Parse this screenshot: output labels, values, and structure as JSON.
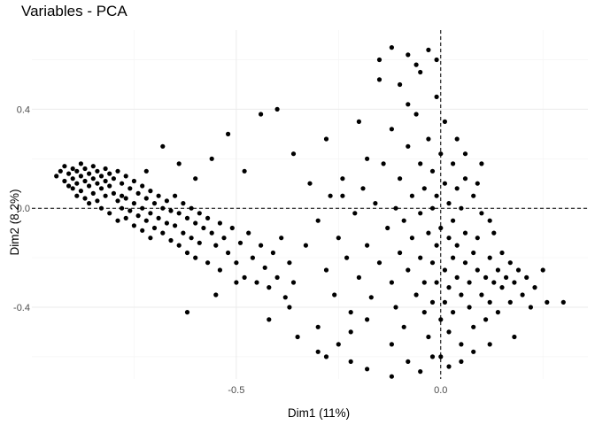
{
  "chart_data": {
    "type": "scatter",
    "title": "Variables - PCA",
    "xlabel": "Dim1 (11%)",
    "ylabel": "Dim2 (8.2%)",
    "xlim": [
      -1.0,
      0.36
    ],
    "ylim": [
      -0.69,
      0.72
    ],
    "x_ticks": [
      -0.5,
      0.0
    ],
    "x_tick_labels": [
      "-0.5",
      "0.0"
    ],
    "y_ticks": [
      -0.4,
      0.0,
      0.4
    ],
    "y_tick_labels": [
      "-0.4",
      "0.0",
      "0.4"
    ],
    "grid": true,
    "reference_lines": {
      "x": 0.0,
      "y": 0.0,
      "style": "dashed"
    },
    "point_color": "#000000",
    "legend": "none",
    "points": [
      [
        -0.94,
        0.13
      ],
      [
        -0.93,
        0.15
      ],
      [
        -0.92,
        0.17
      ],
      [
        -0.92,
        0.11
      ],
      [
        -0.91,
        0.14
      ],
      [
        -0.91,
        0.09
      ],
      [
        -0.9,
        0.16
      ],
      [
        -0.9,
        0.12
      ],
      [
        -0.9,
        0.08
      ],
      [
        -0.89,
        0.15
      ],
      [
        -0.89,
        0.1
      ],
      [
        -0.89,
        0.05
      ],
      [
        -0.88,
        0.18
      ],
      [
        -0.88,
        0.13
      ],
      [
        -0.88,
        0.07
      ],
      [
        -0.87,
        0.16
      ],
      [
        -0.87,
        0.11
      ],
      [
        -0.87,
        0.04
      ],
      [
        -0.86,
        0.14
      ],
      [
        -0.86,
        0.09
      ],
      [
        -0.86,
        0.02
      ],
      [
        -0.85,
        0.17
      ],
      [
        -0.85,
        0.12
      ],
      [
        -0.85,
        0.06
      ],
      [
        -0.84,
        0.15
      ],
      [
        -0.84,
        0.1
      ],
      [
        -0.84,
        0.03
      ],
      [
        -0.83,
        0.13
      ],
      [
        -0.83,
        0.08
      ],
      [
        -0.83,
        0.0
      ],
      [
        -0.82,
        0.16
      ],
      [
        -0.82,
        0.11
      ],
      [
        -0.82,
        0.05
      ],
      [
        -0.81,
        0.14
      ],
      [
        -0.81,
        0.09
      ],
      [
        -0.81,
        -0.02
      ],
      [
        -0.8,
        0.12
      ],
      [
        -0.8,
        0.06
      ],
      [
        -0.79,
        0.15
      ],
      [
        -0.79,
        0.03
      ],
      [
        -0.79,
        -0.05
      ],
      [
        -0.78,
        0.1
      ],
      [
        -0.78,
        0.0
      ],
      [
        -0.77,
        0.13
      ],
      [
        -0.77,
        0.04
      ],
      [
        -0.77,
        -0.04
      ],
      [
        -0.76,
        0.08
      ],
      [
        -0.76,
        -0.01
      ],
      [
        -0.75,
        0.11
      ],
      [
        -0.75,
        0.02
      ],
      [
        -0.75,
        -0.07
      ],
      [
        -0.74,
        0.06
      ],
      [
        -0.74,
        -0.03
      ],
      [
        -0.73,
        0.09
      ],
      [
        -0.73,
        0.0
      ],
      [
        -0.73,
        -0.09
      ],
      [
        -0.72,
        0.04
      ],
      [
        -0.72,
        -0.05
      ],
      [
        -0.71,
        0.07
      ],
      [
        -0.71,
        -0.02
      ],
      [
        -0.71,
        -0.12
      ],
      [
        -0.7,
        0.02
      ],
      [
        -0.7,
        -0.08
      ],
      [
        -0.69,
        0.05
      ],
      [
        -0.69,
        -0.04
      ],
      [
        -0.68,
        0.0
      ],
      [
        -0.68,
        -0.1
      ],
      [
        -0.67,
        0.03
      ],
      [
        -0.67,
        -0.06
      ],
      [
        -0.66,
        -0.01
      ],
      [
        -0.66,
        -0.13
      ],
      [
        -0.65,
        0.05
      ],
      [
        -0.65,
        -0.07
      ],
      [
        -0.64,
        -0.02
      ],
      [
        -0.64,
        -0.15
      ],
      [
        -0.63,
        0.02
      ],
      [
        -0.63,
        -0.1
      ],
      [
        -0.62,
        -0.04
      ],
      [
        -0.62,
        -0.18
      ],
      [
        -0.61,
        0.0
      ],
      [
        -0.61,
        -0.12
      ],
      [
        -0.6,
        -0.06
      ],
      [
        -0.6,
        -0.2
      ],
      [
        -0.59,
        -0.02
      ],
      [
        -0.59,
        -0.14
      ],
      [
        -0.58,
        -0.08
      ],
      [
        -0.57,
        -0.04
      ],
      [
        -0.57,
        -0.22
      ],
      [
        -0.56,
        -0.1
      ],
      [
        -0.55,
        -0.15
      ],
      [
        -0.54,
        -0.06
      ],
      [
        -0.54,
        -0.25
      ],
      [
        -0.53,
        -0.12
      ],
      [
        -0.52,
        -0.18
      ],
      [
        -0.51,
        -0.08
      ],
      [
        -0.5,
        -0.22
      ],
      [
        -0.49,
        -0.14
      ],
      [
        -0.48,
        -0.28
      ],
      [
        -0.47,
        -0.1
      ],
      [
        -0.46,
        -0.2
      ],
      [
        -0.45,
        -0.3
      ],
      [
        -0.44,
        -0.15
      ],
      [
        -0.43,
        -0.24
      ],
      [
        -0.42,
        -0.32
      ],
      [
        -0.41,
        -0.18
      ],
      [
        -0.4,
        -0.28
      ],
      [
        -0.39,
        -0.12
      ],
      [
        -0.38,
        -0.36
      ],
      [
        -0.37,
        -0.22
      ],
      [
        -0.36,
        -0.3
      ],
      [
        -0.78,
        0.05
      ],
      [
        -0.72,
        0.15
      ],
      [
        -0.68,
        0.25
      ],
      [
        -0.64,
        0.18
      ],
      [
        -0.6,
        0.12
      ],
      [
        -0.56,
        0.2
      ],
      [
        -0.52,
        0.3
      ],
      [
        -0.48,
        0.15
      ],
      [
        -0.44,
        0.38
      ],
      [
        -0.4,
        0.4
      ],
      [
        -0.36,
        0.22
      ],
      [
        -0.32,
        0.1
      ],
      [
        -0.28,
        0.28
      ],
      [
        -0.24,
        0.05
      ],
      [
        -0.2,
        0.35
      ],
      [
        -0.18,
        0.2
      ],
      [
        -0.15,
        0.52
      ],
      [
        -0.1,
        0.5
      ],
      [
        -0.08,
        0.42
      ],
      [
        -0.05,
        0.55
      ],
      [
        -0.62,
        -0.42
      ],
      [
        -0.55,
        -0.35
      ],
      [
        -0.5,
        -0.3
      ],
      [
        -0.42,
        -0.45
      ],
      [
        -0.37,
        -0.4
      ],
      [
        -0.3,
        -0.58
      ],
      [
        -0.25,
        -0.55
      ],
      [
        -0.22,
        -0.5
      ],
      [
        -0.18,
        -0.45
      ],
      [
        -0.12,
        -0.55
      ],
      [
        -0.33,
        -0.15
      ],
      [
        -0.3,
        -0.05
      ],
      [
        -0.28,
        -0.25
      ],
      [
        -0.27,
        0.05
      ],
      [
        -0.26,
        -0.35
      ],
      [
        -0.25,
        -0.12
      ],
      [
        -0.24,
        0.12
      ],
      [
        -0.23,
        -0.2
      ],
      [
        -0.22,
        -0.42
      ],
      [
        -0.21,
        -0.02
      ],
      [
        -0.2,
        -0.28
      ],
      [
        -0.19,
        0.08
      ],
      [
        -0.18,
        -0.15
      ],
      [
        -0.17,
        -0.36
      ],
      [
        -0.16,
        0.02
      ],
      [
        -0.15,
        -0.22
      ],
      [
        -0.14,
        0.18
      ],
      [
        -0.13,
        -0.08
      ],
      [
        -0.12,
        -0.3
      ],
      [
        -0.12,
        0.32
      ],
      [
        -0.11,
        0.0
      ],
      [
        -0.11,
        -0.4
      ],
      [
        -0.1,
        -0.18
      ],
      [
        -0.1,
        0.12
      ],
      [
        -0.09,
        -0.05
      ],
      [
        -0.09,
        -0.48
      ],
      [
        -0.08,
        0.25
      ],
      [
        -0.08,
        -0.25
      ],
      [
        -0.07,
        0.05
      ],
      [
        -0.07,
        -0.12
      ],
      [
        -0.06,
        -0.35
      ],
      [
        -0.06,
        0.38
      ],
      [
        -0.05,
        -0.02
      ],
      [
        -0.05,
        -0.2
      ],
      [
        -0.05,
        0.18
      ],
      [
        -0.04,
        -0.42
      ],
      [
        -0.04,
        0.08
      ],
      [
        -0.04,
        -0.3
      ],
      [
        -0.03,
        -0.1
      ],
      [
        -0.03,
        0.28
      ],
      [
        -0.03,
        -0.52
      ],
      [
        -0.02,
        0.0
      ],
      [
        -0.02,
        -0.22
      ],
      [
        -0.02,
        0.15
      ],
      [
        -0.02,
        -0.38
      ],
      [
        -0.01,
        0.45
      ],
      [
        -0.01,
        -0.15
      ],
      [
        -0.01,
        0.05
      ],
      [
        -0.01,
        -0.3
      ],
      [
        0.0,
        -0.45
      ],
      [
        0.0,
        0.22
      ],
      [
        0.0,
        -0.08
      ],
      [
        0.0,
        -0.6
      ],
      [
        0.01,
        0.1
      ],
      [
        0.01,
        -0.25
      ],
      [
        0.01,
        -0.38
      ],
      [
        0.01,
        0.35
      ],
      [
        0.02,
        -0.12
      ],
      [
        0.02,
        0.02
      ],
      [
        0.02,
        -0.5
      ],
      [
        0.02,
        -0.32
      ],
      [
        0.03,
        0.18
      ],
      [
        0.03,
        -0.2
      ],
      [
        0.03,
        -0.05
      ],
      [
        0.03,
        -0.42
      ],
      [
        0.04,
        0.08
      ],
      [
        0.04,
        -0.28
      ],
      [
        0.04,
        -0.15
      ],
      [
        0.05,
        -0.35
      ],
      [
        0.05,
        0.0
      ],
      [
        0.05,
        -0.55
      ],
      [
        0.06,
        -0.22
      ],
      [
        0.06,
        0.12
      ],
      [
        0.06,
        -0.1
      ],
      [
        0.07,
        -0.4
      ],
      [
        0.07,
        -0.3
      ],
      [
        0.08,
        -0.18
      ],
      [
        0.08,
        0.05
      ],
      [
        0.08,
        -0.48
      ],
      [
        0.09,
        -0.25
      ],
      [
        0.09,
        -0.12
      ],
      [
        0.1,
        -0.35
      ],
      [
        0.1,
        -0.02
      ],
      [
        0.11,
        -0.28
      ],
      [
        0.11,
        -0.45
      ],
      [
        0.12,
        -0.2
      ],
      [
        0.12,
        -0.38
      ],
      [
        0.13,
        -0.1
      ],
      [
        0.13,
        -0.3
      ],
      [
        0.14,
        -0.25
      ],
      [
        0.14,
        -0.42
      ],
      [
        0.15,
        -0.18
      ],
      [
        0.15,
        -0.32
      ],
      [
        0.16,
        -0.28
      ],
      [
        0.17,
        -0.22
      ],
      [
        0.17,
        -0.38
      ],
      [
        0.18,
        -0.3
      ],
      [
        0.19,
        -0.25
      ],
      [
        0.2,
        -0.35
      ],
      [
        0.21,
        -0.28
      ],
      [
        0.22,
        -0.4
      ],
      [
        0.23,
        -0.32
      ],
      [
        0.25,
        -0.25
      ],
      [
        0.26,
        -0.38
      ],
      [
        0.3,
        -0.38
      ],
      [
        -0.22,
        -0.62
      ],
      [
        -0.18,
        -0.65
      ],
      [
        -0.12,
        -0.68
      ],
      [
        -0.08,
        -0.62
      ],
      [
        -0.05,
        -0.66
      ],
      [
        -0.02,
        -0.6
      ],
      [
        0.02,
        -0.64
      ],
      [
        0.05,
        -0.62
      ],
      [
        0.08,
        -0.58
      ],
      [
        0.12,
        -0.55
      ],
      [
        0.18,
        -0.52
      ],
      [
        -0.15,
        0.6
      ],
      [
        -0.12,
        0.65
      ],
      [
        -0.08,
        0.62
      ],
      [
        -0.06,
        0.58
      ],
      [
        -0.03,
        0.64
      ],
      [
        -0.01,
        0.6
      ],
      [
        -0.3,
        -0.48
      ],
      [
        -0.28,
        -0.6
      ],
      [
        -0.35,
        -0.52
      ],
      [
        0.04,
        0.28
      ],
      [
        0.06,
        0.22
      ],
      [
        0.09,
        0.1
      ],
      [
        0.12,
        -0.05
      ],
      [
        0.1,
        0.18
      ]
    ]
  }
}
